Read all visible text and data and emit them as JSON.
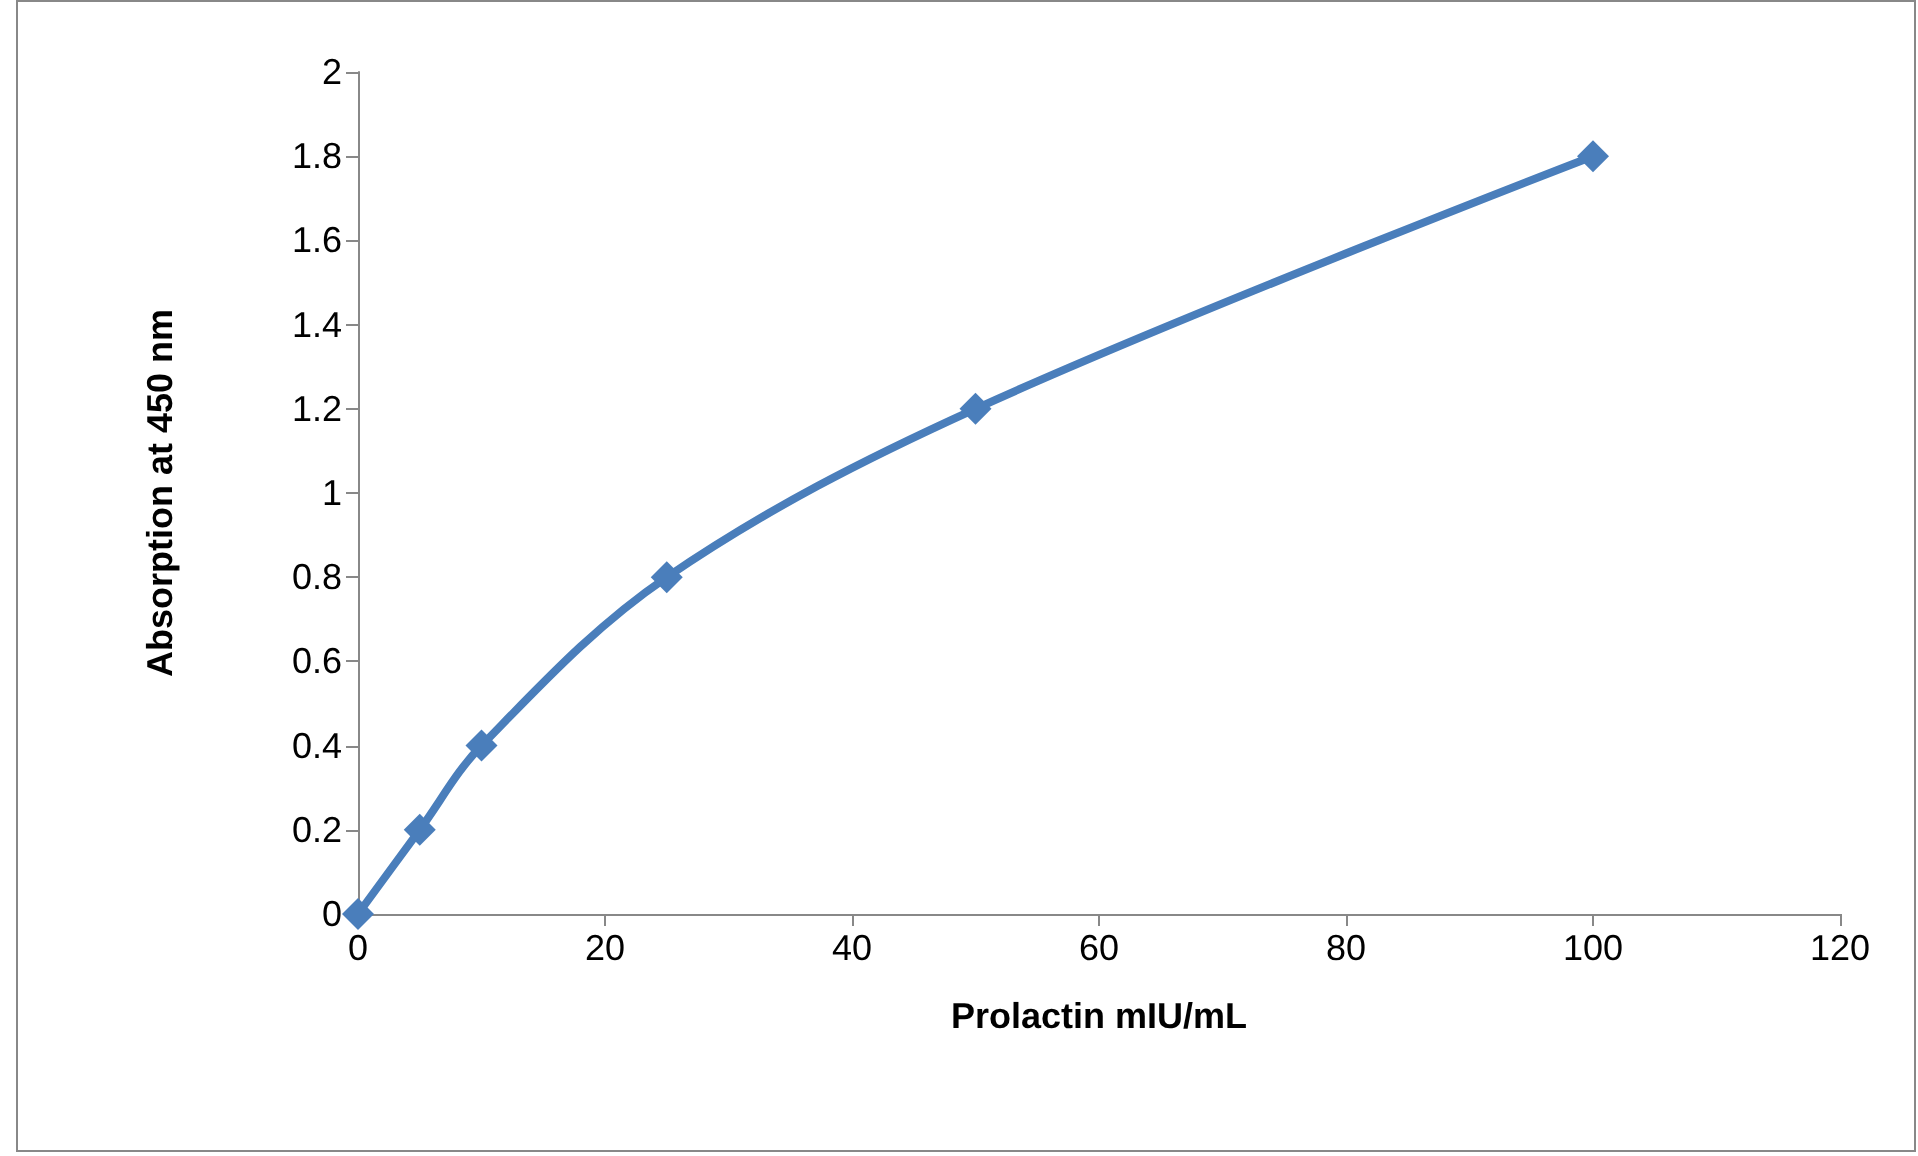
{
  "chart_data": {
    "type": "line",
    "xlabel": "Prolactin mIU/mL",
    "ylabel": "Absorption at 450 nm",
    "x": [
      0,
      5,
      10,
      25,
      50,
      100
    ],
    "series": [
      {
        "color": "#4a7ebb",
        "values": [
          0,
          0.2,
          0.4,
          0.8,
          1.2,
          1.8
        ]
      }
    ],
    "xlim": [
      0,
      120
    ],
    "xticks": [
      0,
      20,
      40,
      60,
      80,
      100,
      120
    ],
    "ylim": [
      0,
      2
    ],
    "yticks": [
      0,
      0.2,
      0.4,
      0.6,
      0.8,
      1,
      1.2,
      1.4,
      1.6,
      1.8,
      2
    ],
    "grid": false,
    "marker": "diamond",
    "line_style": "solid"
  }
}
